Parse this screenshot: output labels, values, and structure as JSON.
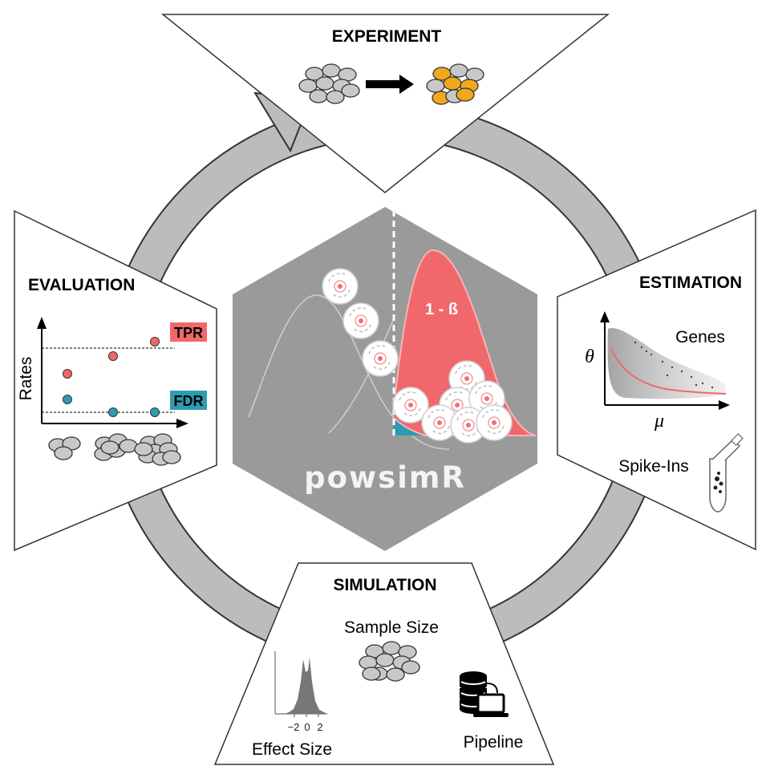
{
  "experiment": {
    "title": "EXPERIMENT"
  },
  "estimation": {
    "title": "ESTIMATION",
    "genes_label": "Genes",
    "theta_symbol": "θ",
    "mu_symbol": "μ",
    "spikeins_label": "Spike-Ins"
  },
  "simulation": {
    "title": "SIMULATION",
    "sample_size_label": "Sample Size",
    "effect_size_label": "Effect Size",
    "pipeline_label": "Pipeline",
    "histogram_ticks": [
      "−2",
      "0",
      "2"
    ]
  },
  "evaluation": {
    "title": "EVALUATION",
    "rates_label": "Rates",
    "tpr_label": "TPR",
    "fdr_label": "FDR",
    "tpr_points": [
      0.48,
      0.7,
      0.88
    ],
    "fdr_points": [
      0.16,
      0.0,
      0.0
    ]
  },
  "center": {
    "logo_text": "powsimR",
    "power_label": "1 - ß"
  },
  "colors": {
    "ring": "#bcbcbc",
    "hexagon": "#9a9a9a",
    "red": "#f0686b",
    "teal": "#2e9bb3",
    "orange": "#f2a81c",
    "cell_gray": "#c8c8c8"
  }
}
